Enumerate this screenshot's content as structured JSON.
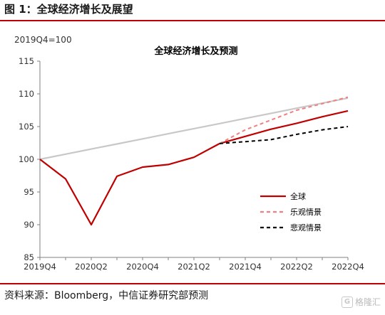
{
  "figure": {
    "title": "图 1：全球经济增长及展望",
    "source": "资料来源：Bloomberg，中信证券研究部预测",
    "watermark": "格隆汇",
    "watermark_icon": "logo-icon"
  },
  "chart_data": {
    "type": "line",
    "title": "全球经济增长及预测",
    "unit_label": "2019Q4=100",
    "xlabel": "",
    "ylabel": "",
    "ylim": [
      85,
      115
    ],
    "yticks": [
      85,
      90,
      95,
      100,
      105,
      110,
      115
    ],
    "x": [
      "2019Q4",
      "2020Q1",
      "2020Q2",
      "2020Q3",
      "2020Q4",
      "2021Q1",
      "2021Q2",
      "2021Q3",
      "2021Q4",
      "2022Q1",
      "2022Q2",
      "2022Q3",
      "2022Q4"
    ],
    "xtick_labels": [
      "2019Q4",
      "2020Q2",
      "2020Q4",
      "2021Q2",
      "2021Q4",
      "2022Q2",
      "2022Q4"
    ],
    "series": [
      {
        "name": "全球",
        "color": "#c00000",
        "dash": "solid",
        "values": [
          100,
          97,
          90,
          97.4,
          98.8,
          99.2,
          100.3,
          102.4,
          103.5,
          104.6,
          105.5,
          106.5,
          107.4
        ]
      },
      {
        "name": "乐观情景",
        "color": "#f08080",
        "dash": "dashed",
        "values": [
          null,
          null,
          null,
          null,
          null,
          null,
          null,
          102.4,
          104.5,
          106.0,
          107.5,
          108.5,
          109.5
        ]
      },
      {
        "name": "悲观情景",
        "color": "#000000",
        "dash": "dashed",
        "values": [
          null,
          null,
          null,
          null,
          null,
          null,
          null,
          102.4,
          102.7,
          103.0,
          103.8,
          104.5,
          105.0
        ]
      },
      {
        "name": "",
        "color": "#c8c8c8",
        "dash": "solid",
        "values": [
          100,
          100.78,
          101.56,
          102.34,
          103.12,
          103.9,
          104.68,
          105.46,
          106.24,
          107.02,
          107.8,
          108.58,
          109.36
        ]
      }
    ],
    "legend": [
      "全球",
      "乐观情景",
      "悲观情景"
    ],
    "legend_position": "right-lower",
    "grid": false
  }
}
